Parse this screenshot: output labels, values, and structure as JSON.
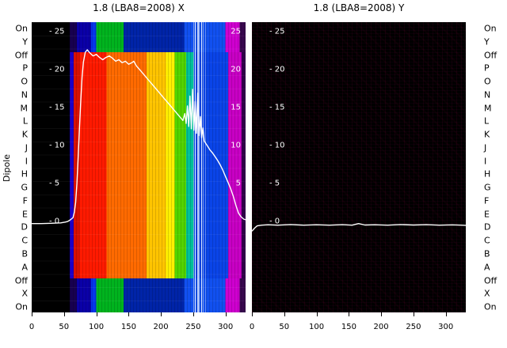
{
  "figure": {
    "ylabel": "Dipole",
    "dipole_labels": [
      "On",
      "Y",
      "Off",
      "P",
      "O",
      "N",
      "M",
      "L",
      "K",
      "J",
      "I",
      "H",
      "G",
      "F",
      "E",
      "D",
      "C",
      "B",
      "A",
      "Off",
      "X",
      "On"
    ]
  },
  "chart_data": [
    {
      "type": "heatmap",
      "title": "1.8 (LBA8=2008) X",
      "xlim": [
        0,
        331
      ],
      "ylim": [
        -12,
        26.25
      ],
      "xticks": [
        0,
        50,
        100,
        150,
        200,
        250,
        300
      ],
      "yticks_left": [
        25,
        20,
        15,
        10,
        5,
        0
      ],
      "yticks_right": [
        25,
        20,
        15,
        10,
        5
      ],
      "line_color": "#ffffff",
      "series": [
        {
          "name": "median spectrum X",
          "x": [
            0,
            15,
            30,
            45,
            52,
            56,
            60,
            64,
            66,
            68,
            70,
            72,
            74,
            76,
            78,
            80,
            83,
            86,
            90,
            95,
            100,
            105,
            110,
            115,
            120,
            125,
            130,
            135,
            140,
            145,
            150,
            155,
            158,
            162,
            166,
            170,
            175,
            180,
            185,
            190,
            195,
            200,
            205,
            210,
            215,
            220,
            225,
            230,
            234,
            237,
            239,
            241,
            243,
            245,
            247,
            249,
            251,
            253,
            255,
            257,
            259,
            261,
            263,
            265,
            267,
            270,
            273,
            276,
            280,
            284,
            288,
            292,
            296,
            300,
            304,
            308,
            312,
            316,
            320,
            324,
            328,
            331
          ],
          "y": [
            -0.3,
            -0.3,
            -0.25,
            -0.2,
            -0.1,
            0,
            0.2,
            0.5,
            1.2,
            2.5,
            5,
            8.5,
            12.5,
            16,
            19,
            21,
            22.3,
            22.6,
            22.2,
            21.8,
            22.0,
            21.6,
            21.3,
            21.6,
            21.8,
            21.5,
            21.1,
            21.3,
            20.9,
            21.1,
            20.7,
            20.9,
            21.1,
            20.5,
            20.1,
            19.7,
            19.2,
            18.7,
            18.2,
            17.7,
            17.2,
            16.7,
            16.2,
            15.7,
            15.2,
            14.7,
            14.2,
            13.7,
            13.3,
            14.2,
            12.9,
            15.2,
            12.5,
            16.5,
            12.2,
            17.4,
            12,
            15.8,
            11.6,
            16.9,
            11.3,
            13.8,
            11,
            12.3,
            10.6,
            10.2,
            9.8,
            9.4,
            9,
            8.5,
            8,
            7.4,
            6.7,
            5.9,
            5.1,
            4.3,
            3.3,
            2.1,
            1.1,
            0.6,
            0.3,
            0.2
          ]
        }
      ],
      "heatmap_outer_bands": [
        [
          59,
          70,
          "#17004f"
        ],
        [
          70,
          92,
          "#0a00a8"
        ],
        [
          92,
          100,
          "#0535ee"
        ],
        [
          100,
          142,
          "#00b31e"
        ],
        [
          142,
          236,
          "#0024a8"
        ],
        [
          236,
          300,
          "#1150f0"
        ],
        [
          300,
          322,
          "#cf00cf"
        ],
        [
          322,
          331,
          "#38074e"
        ]
      ],
      "heatmap_block_bands": [
        [
          59,
          65,
          "#1c00c8"
        ],
        [
          65,
          74,
          "#d81000"
        ],
        [
          74,
          116,
          "#ff1a00"
        ],
        [
          116,
          178,
          "#ff6a00"
        ],
        [
          178,
          208,
          "#ffc400"
        ],
        [
          208,
          221,
          "#fdf000"
        ],
        [
          221,
          239,
          "#52d400"
        ],
        [
          239,
          251,
          "#00c09a"
        ],
        [
          251,
          304,
          "#0a44e8"
        ],
        [
          304,
          325,
          "#c800c4"
        ],
        [
          325,
          331,
          "#30004a"
        ]
      ],
      "rfi_lines": [
        [
          250,
          1,
          0.45
        ],
        [
          253,
          1,
          0.9
        ],
        [
          256,
          2,
          0.7
        ],
        [
          259,
          1,
          0.5
        ],
        [
          262,
          1,
          0.85
        ],
        [
          265,
          1,
          0.45
        ],
        [
          269,
          1,
          0.35
        ]
      ]
    },
    {
      "type": "heatmap",
      "title": "1.8 (LBA8=2008) Y",
      "xlim": [
        0,
        331
      ],
      "ylim": [
        -12,
        26.25
      ],
      "xticks": [
        0,
        50,
        100,
        150,
        200,
        250,
        300
      ],
      "yticks_left": [
        25,
        20,
        15,
        10,
        5,
        0
      ],
      "yticks_right": [],
      "line_color": "#ffffff",
      "series": [
        {
          "name": "median spectrum Y",
          "x": [
            0,
            4,
            8,
            15,
            25,
            40,
            60,
            80,
            100,
            120,
            140,
            155,
            165,
            175,
            190,
            210,
            230,
            250,
            270,
            290,
            310,
            325,
            331
          ],
          "y": [
            -1.3,
            -0.9,
            -0.6,
            -0.5,
            -0.45,
            -0.5,
            -0.42,
            -0.5,
            -0.45,
            -0.5,
            -0.44,
            -0.5,
            -0.3,
            -0.48,
            -0.45,
            -0.5,
            -0.42,
            -0.48,
            -0.44,
            -0.5,
            -0.46,
            -0.5,
            -0.52
          ]
        }
      ],
      "heatmap_outer_bands": [],
      "heatmap_block_bands": [],
      "rfi_lines": []
    }
  ]
}
